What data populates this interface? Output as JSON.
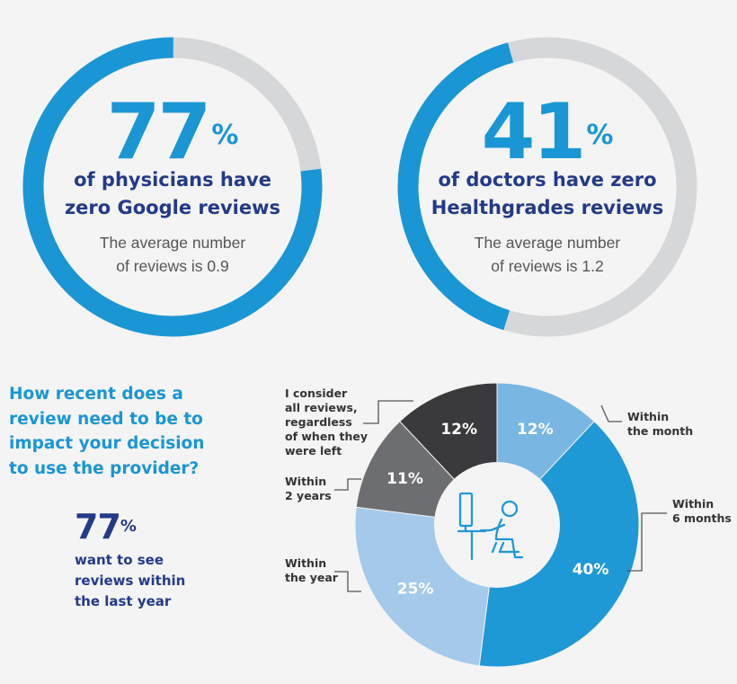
{
  "stats": [
    {
      "number": "77",
      "unit": "%",
      "fraction": 0.77,
      "headline": [
        "of physicians have",
        "zero Google reviews"
      ],
      "sub": [
        "The average number",
        "of reviews is 0.9"
      ]
    },
    {
      "number": "41",
      "unit": "%",
      "fraction": 0.41,
      "headline": [
        "of doctors have zero",
        "Healthgrades reviews"
      ],
      "sub": [
        "The average number",
        "of reviews is 1.2"
      ]
    }
  ],
  "question": [
    "How recent does a",
    "review need to be to",
    "impact your decision",
    "to use the provider?"
  ],
  "highlight": {
    "number": "77",
    "unit": "%",
    "text": [
      "want to see",
      "reviews within",
      "the last year"
    ]
  },
  "chart_data": {
    "type": "pie",
    "title": "",
    "slices": [
      {
        "label": "Within the month",
        "value": 12,
        "display": "12%",
        "label_lines": [
          "Within",
          "the month"
        ],
        "color": "#7ab6e2"
      },
      {
        "label": "Within 6 months",
        "value": 40,
        "display": "40%",
        "label_lines": [
          "Within",
          "6 months"
        ],
        "color": "#1f98d6"
      },
      {
        "label": "Within the year",
        "value": 25,
        "display": "25%",
        "label_lines": [
          "Within",
          "the year"
        ],
        "color": "#a4c9ea"
      },
      {
        "label": "Within 2 years",
        "value": 11,
        "display": "11%",
        "label_lines": [
          "Within",
          "2 years"
        ],
        "color": "#6d6e71"
      },
      {
        "label": "I consider all reviews, regardless of when they were left",
        "value": 12,
        "display": "12%",
        "label_lines": [
          "I consider",
          "all reviews,",
          "regardless",
          "of when they",
          "were left"
        ],
        "color": "#3a3a3c"
      }
    ]
  },
  "colors": {
    "accent": "#1a96d4",
    "navy": "#233a88",
    "ring_track": "#d6d7d9",
    "background": "#f4f4f4"
  },
  "icon": "person-at-computer-icon"
}
